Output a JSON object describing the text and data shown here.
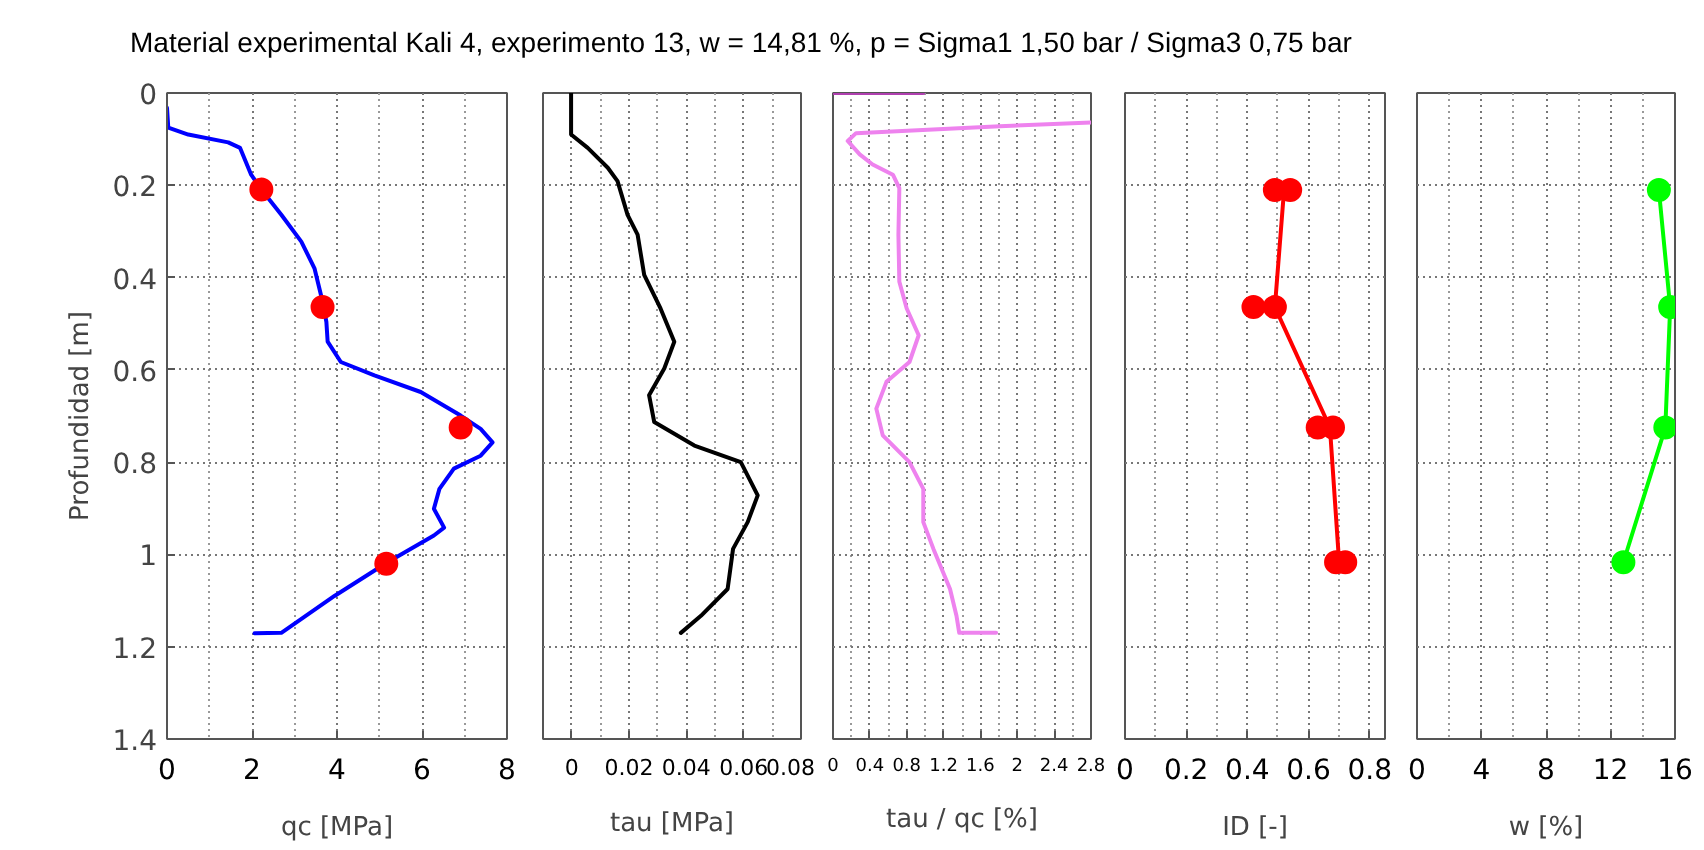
{
  "chart_data": [
    {
      "type": "line",
      "title": "Material experimental Kali 4, experimento 13, w = 14,81 %, p = Sigma1 1,50 bar / Sigma3 0,75 bar",
      "xlabel": "qc [MPa]",
      "ylabel": "Profundidad [m]",
      "xlim": [
        0,
        8
      ],
      "xticks": [
        0,
        2,
        4,
        6,
        8
      ],
      "ylim": [
        1.4,
        0
      ],
      "yticks": [
        0,
        0.2,
        0.4,
        0.6,
        0.8,
        1,
        1.2,
        1.4
      ],
      "grid": true,
      "series": [
        {
          "color": "#0000ff",
          "x": [
            0,
            0.03,
            0.5,
            1.44,
            1.72,
            1.98,
            2.22,
            2.69,
            3.16,
            3.47,
            3.66,
            3.75,
            3.78,
            4.09,
            4.88,
            5.97,
            6.91,
            7.38,
            7.66,
            7.38,
            6.75,
            6.41,
            6.28,
            6.52,
            6.28,
            5.19,
            3.94,
            2.69,
            2.06
          ],
          "values": [
            0.032,
            0.075,
            0.09,
            0.107,
            0.119,
            0.177,
            0.209,
            0.264,
            0.322,
            0.38,
            0.452,
            0.496,
            0.539,
            0.583,
            0.612,
            0.648,
            0.699,
            0.728,
            0.757,
            0.786,
            0.814,
            0.858,
            0.901,
            0.942,
            0.959,
            1.017,
            1.09,
            1.17,
            1.171
          ]
        },
        {
          "type": "scatter",
          "color": "#ff0000",
          "marker": "circle",
          "x": [
            2.22,
            3.66,
            6.91,
            5.16
          ],
          "values": [
            0.209,
            0.464,
            0.725,
            1.02
          ]
        }
      ]
    },
    {
      "type": "line",
      "xlabel": "tau [MPa]",
      "xlim": [
        -0.01,
        0.08
      ],
      "xticks": [
        0,
        0.02,
        0.04,
        0.06,
        0.08
      ],
      "ylim": [
        1.4,
        0
      ],
      "yticks": [
        0,
        0.2,
        0.4,
        0.6,
        0.8,
        1,
        1.2,
        1.4
      ],
      "grid": true,
      "tick_labels": "x",
      "series": [
        {
          "color": "#000000",
          "x": [
            -0.0002,
            -0.0002,
            0.0056,
            0.0126,
            0.016,
            0.0195,
            0.023,
            0.0253,
            0.031,
            0.0358,
            0.0323,
            0.027,
            0.0288,
            0.0428,
            0.059,
            0.0649,
            0.0614,
            0.0563,
            0.0544,
            0.0451,
            0.0381
          ],
          "values": [
            0.0,
            0.09,
            0.119,
            0.162,
            0.191,
            0.264,
            0.307,
            0.394,
            0.467,
            0.539,
            0.597,
            0.655,
            0.713,
            0.764,
            0.8,
            0.872,
            0.93,
            0.988,
            1.075,
            1.133,
            1.17
          ]
        }
      ]
    },
    {
      "type": "line",
      "xlabel": "tau / qc [%]",
      "xlim": [
        0,
        2.8
      ],
      "xticks": [
        0,
        0.4,
        0.8,
        1.2,
        1.6,
        2,
        2.4,
        2.8
      ],
      "ylim": [
        1.4,
        0
      ],
      "yticks": [
        0,
        0.2,
        0.4,
        0.6,
        0.8,
        1,
        1.2,
        1.4
      ],
      "grid": true,
      "tick_labels": "x",
      "series": [
        {
          "color": "#b040b0",
          "x": [
            0,
            0.98
          ],
          "values": [
            0,
            0
          ]
        },
        {
          "color": "#ee82ee",
          "x": [
            2.8,
            1.81,
            0.25,
            0.16,
            0.29,
            0.43,
            0.65,
            0.72,
            0.71,
            0.72,
            0.8,
            0.93,
            0.83,
            0.58,
            0.47,
            0.54,
            0.83,
            0.98,
            0.98,
            1.09,
            1.27,
            1.34,
            1.37,
            1.77
          ],
          "values": [
            0.064,
            0.072,
            0.087,
            0.104,
            0.133,
            0.155,
            0.177,
            0.206,
            0.307,
            0.409,
            0.467,
            0.525,
            0.583,
            0.626,
            0.684,
            0.742,
            0.8,
            0.858,
            0.93,
            0.988,
            1.075,
            1.133,
            1.17,
            1.17
          ]
        }
      ]
    },
    {
      "type": "line",
      "xlabel": "ID [-]",
      "xlim": [
        0,
        0.85
      ],
      "xticks": [
        0,
        0.2,
        0.4,
        0.6,
        0.8
      ],
      "ylim": [
        1.4,
        0
      ],
      "yticks": [
        0,
        0.2,
        0.4,
        0.6,
        0.8,
        1,
        1.2,
        1.4
      ],
      "grid": true,
      "tick_labels": "x",
      "series": [
        {
          "color": "#ff0000",
          "x": [
            0.52,
            0.49,
            0.67,
            0.7
          ],
          "values": [
            0.21,
            0.464,
            0.725,
            1.017
          ]
        },
        {
          "type": "scatter",
          "color": "#ff0000",
          "marker": "circle",
          "x": [
            0.49,
            0.54,
            0.42,
            0.49,
            0.63,
            0.68,
            0.69,
            0.72
          ],
          "values": [
            0.21,
            0.21,
            0.464,
            0.464,
            0.725,
            0.725,
            1.017,
            1.017
          ]
        }
      ]
    },
    {
      "type": "line",
      "xlabel": "w [%]",
      "xlim": [
        0,
        16
      ],
      "xticks": [
        0,
        4,
        8,
        12,
        16
      ],
      "ylim": [
        1.4,
        0
      ],
      "yticks": [
        0,
        0.2,
        0.4,
        0.6,
        0.8,
        1,
        1.2,
        1.4
      ],
      "grid": true,
      "tick_labels": "x",
      "series": [
        {
          "color": "#00ff00",
          "marker": "circle",
          "x": [
            15.0,
            15.7,
            15.4,
            12.8
          ],
          "values": [
            0.21,
            0.464,
            0.725,
            1.017
          ]
        }
      ]
    }
  ]
}
